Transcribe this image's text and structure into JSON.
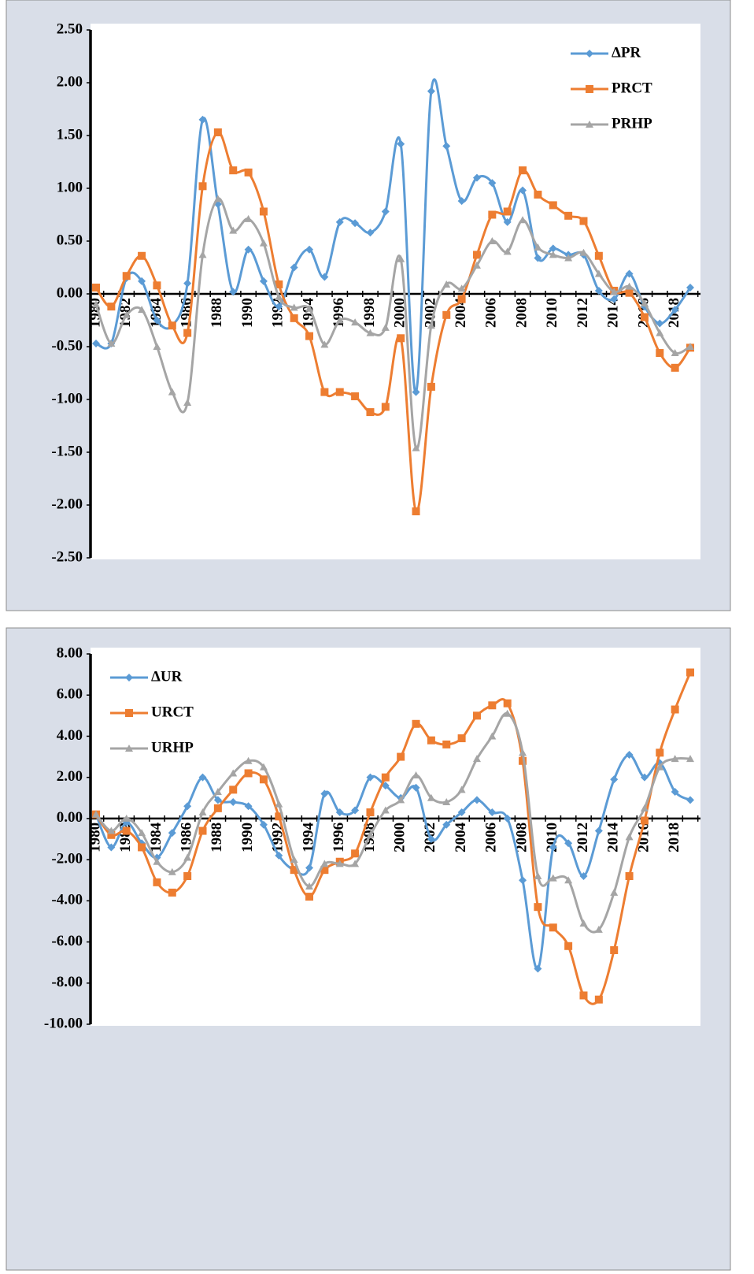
{
  "chart_data": [
    {
      "type": "line",
      "categories": [
        "1980",
        null,
        "1982",
        null,
        "1984",
        null,
        "1986",
        null,
        "1988",
        null,
        "1990",
        null,
        "1992",
        null,
        "1994",
        null,
        "1996",
        null,
        "1998",
        null,
        "2000",
        null,
        "2002",
        null,
        "2004",
        null,
        "2006",
        null,
        "2008",
        null,
        "2010",
        null,
        "2012",
        null,
        "2014",
        null,
        "2016",
        null,
        "2018",
        null
      ],
      "series": [
        {
          "name": "ΔPR",
          "color": "#5b9bd5",
          "marker": "diamond",
          "values": [
            -0.47,
            -0.47,
            0.15,
            0.12,
            -0.25,
            -0.3,
            0.1,
            1.65,
            0.85,
            0.02,
            0.42,
            0.12,
            -0.12,
            0.25,
            0.42,
            0.16,
            0.68,
            0.67,
            0.58,
            0.78,
            1.42,
            -0.93,
            1.92,
            1.4,
            0.88,
            1.1,
            1.05,
            0.68,
            0.98,
            0.34,
            0.43,
            0.37,
            0.37,
            0.03,
            -0.05,
            0.19,
            -0.12,
            -0.28,
            -0.15,
            0.06
          ]
        },
        {
          "name": "PRCT",
          "color": "#ed7d31",
          "marker": "square",
          "values": [
            0.06,
            -0.12,
            0.17,
            0.36,
            0.08,
            -0.3,
            -0.37,
            1.02,
            1.53,
            1.17,
            1.15,
            0.78,
            0.09,
            -0.23,
            -0.4,
            -0.93,
            -0.93,
            -0.97,
            -1.12,
            -1.07,
            -0.42,
            -2.06,
            -0.88,
            -0.2,
            -0.05,
            0.37,
            0.75,
            0.78,
            1.17,
            0.94,
            0.84,
            0.74,
            0.69,
            0.36,
            0.03,
            0.01,
            -0.22,
            -0.56,
            -0.7,
            -0.51
          ]
        },
        {
          "name": "PRHP",
          "color": "#a5a5a5",
          "marker": "triangle",
          "values": [
            -0.1,
            -0.47,
            -0.2,
            -0.15,
            -0.5,
            -0.93,
            -1.03,
            0.37,
            0.9,
            0.6,
            0.71,
            0.48,
            -0.03,
            -0.13,
            -0.14,
            -0.48,
            -0.25,
            -0.27,
            -0.37,
            -0.32,
            0.33,
            -1.46,
            -0.3,
            0.09,
            0.05,
            0.27,
            0.5,
            0.4,
            0.7,
            0.44,
            0.37,
            0.34,
            0.39,
            0.19,
            0.02,
            0.07,
            -0.09,
            -0.37,
            -0.56,
            -0.5
          ]
        }
      ],
      "ylim": [
        -2.5,
        2.5
      ],
      "yticks": [
        {
          "value": -2.5,
          "label": "-2.50"
        },
        {
          "value": -2,
          "label": "-2.00"
        },
        {
          "value": -1.5,
          "label": "-1.50"
        },
        {
          "value": -1,
          "label": "-1.00"
        },
        {
          "value": -0.5,
          "label": "-0.50"
        },
        {
          "value": 0,
          "label": "0.00"
        },
        {
          "value": 0.5,
          "label": "0.50"
        },
        {
          "value": 1,
          "label": "1.00"
        },
        {
          "value": 1.5,
          "label": "1.50"
        },
        {
          "value": 2,
          "label": "2.00"
        },
        {
          "value": 2.5,
          "label": "2.50"
        }
      ],
      "legend": "top-right",
      "smooth": true
    },
    {
      "type": "line",
      "categories": [
        "1980",
        null,
        "1982",
        null,
        "1984",
        null,
        "1986",
        null,
        "1988",
        null,
        "1990",
        null,
        "1992",
        null,
        "1994",
        null,
        "1996",
        null,
        "1998",
        null,
        "2000",
        null,
        "2002",
        null,
        "2004",
        null,
        "2006",
        null,
        "2008",
        null,
        "2010",
        null,
        "2012",
        null,
        "2014",
        null,
        "2016",
        null,
        "2018",
        null
      ],
      "series": [
        {
          "name": "ΔUR",
          "color": "#5b9bd5",
          "marker": "diamond",
          "values": [
            0.2,
            -1.4,
            -0.2,
            -1.2,
            -1.9,
            -0.7,
            0.6,
            2.0,
            0.9,
            0.8,
            0.6,
            -0.3,
            -1.8,
            -2.5,
            -2.4,
            1.2,
            0.3,
            0.4,
            2.0,
            1.6,
            1.0,
            1.5,
            -1.0,
            -0.3,
            0.3,
            0.9,
            0.3,
            0.0,
            -3.0,
            -7.3,
            -1.4,
            -1.2,
            -2.8,
            -0.6,
            1.9,
            3.1,
            2.0,
            2.7,
            1.3,
            0.9
          ]
        },
        {
          "name": "URCT",
          "color": "#ed7d31",
          "marker": "square",
          "values": [
            0.2,
            -0.8,
            -0.6,
            -1.4,
            -3.1,
            -3.6,
            -2.8,
            -0.6,
            0.5,
            1.4,
            2.2,
            1.9,
            0.1,
            -2.5,
            -3.8,
            -2.5,
            -2.1,
            -1.7,
            0.3,
            2.0,
            3.0,
            4.6,
            3.8,
            3.6,
            3.9,
            5.0,
            5.5,
            5.6,
            2.8,
            -4.3,
            -5.3,
            -6.2,
            -8.6,
            -8.8,
            -6.4,
            -2.8,
            -0.1,
            3.2,
            5.3,
            7.1
          ]
        },
        {
          "name": "URHP",
          "color": "#a5a5a5",
          "marker": "triangle",
          "values": [
            0.2,
            -0.6,
            0.0,
            -0.7,
            -2.1,
            -2.6,
            -1.9,
            0.3,
            1.3,
            2.2,
            2.8,
            2.5,
            0.7,
            -2.0,
            -3.3,
            -2.2,
            -2.2,
            -2.2,
            -0.8,
            0.4,
            0.9,
            2.1,
            1.0,
            0.8,
            1.4,
            2.9,
            4.0,
            5.1,
            3.2,
            -2.8,
            -2.9,
            -3.0,
            -5.1,
            -5.4,
            -3.6,
            -0.9,
            0.5,
            2.5,
            2.9,
            2.9
          ]
        }
      ],
      "ylim": [
        -10,
        8
      ],
      "yticks": [
        {
          "value": -10,
          "label": "-10.00"
        },
        {
          "value": -8,
          "label": "-8.00"
        },
        {
          "value": -6,
          "label": "-6.00"
        },
        {
          "value": -4,
          "label": "-4.00"
        },
        {
          "value": -2,
          "label": "-2.00"
        },
        {
          "value": 0,
          "label": "0.00"
        },
        {
          "value": 2,
          "label": "2.00"
        },
        {
          "value": 4,
          "label": "4.00"
        },
        {
          "value": 6,
          "label": "6.00"
        },
        {
          "value": 8,
          "label": "8.00"
        }
      ],
      "legend": "top-left",
      "smooth": true
    }
  ]
}
